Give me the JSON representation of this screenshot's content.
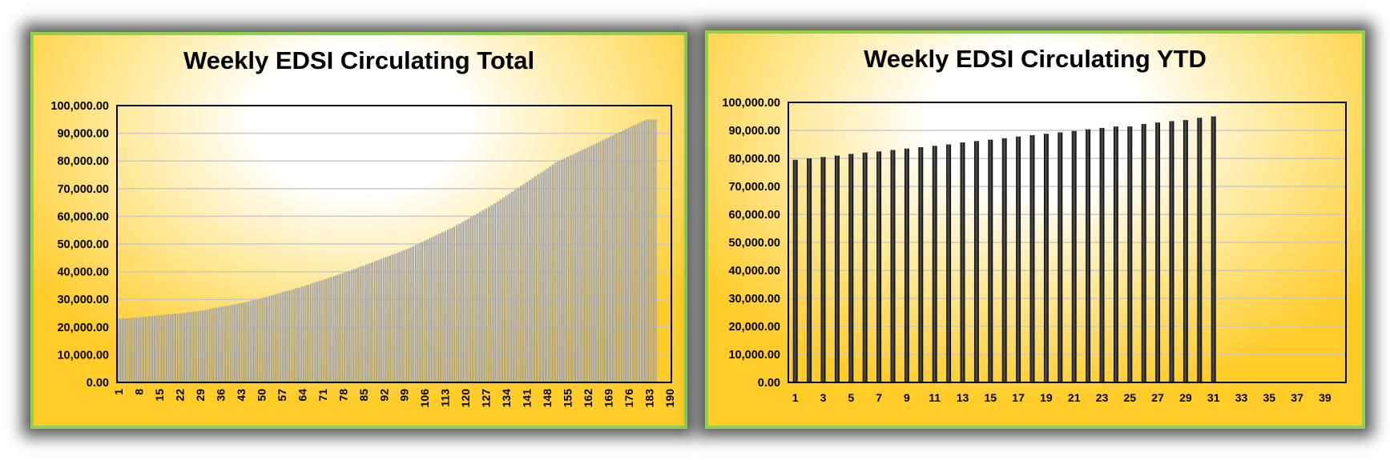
{
  "chart_data": [
    {
      "type": "bar",
      "title": "Weekly EDSI Circulating Total",
      "xlabel": "",
      "ylabel": "",
      "ylim": [
        0,
        100000
      ],
      "y_ticks": [
        "0.00",
        "10,000.00",
        "20,000.00",
        "30,000.00",
        "40,000.00",
        "50,000.00",
        "60,000.00",
        "70,000.00",
        "80,000.00",
        "90,000.00",
        "100,000.00"
      ],
      "x_ticks": [
        "1",
        "8",
        "15",
        "22",
        "29",
        "36",
        "43",
        "50",
        "57",
        "64",
        "71",
        "78",
        "85",
        "92",
        "99",
        "106",
        "113",
        "120",
        "127",
        "134",
        "141",
        "148",
        "155",
        "162",
        "169",
        "176",
        "183",
        "190"
      ],
      "category_count": 190,
      "bar_count": 185,
      "values": [
        23000,
        23050,
        23100,
        23180,
        23250,
        23350,
        23450,
        23550,
        23650,
        23750,
        23850,
        23950,
        24050,
        24150,
        24250,
        24350,
        24450,
        24550,
        24650,
        24750,
        24850,
        24950,
        25050,
        25150,
        25300,
        25450,
        25600,
        25750,
        25900,
        26050,
        26250,
        26450,
        26650,
        26850,
        27050,
        27250,
        27450,
        27650,
        27850,
        28050,
        28250,
        28450,
        28650,
        28850,
        29100,
        29350,
        29600,
        29850,
        30100,
        30400,
        30700,
        31000,
        31300,
        31600,
        31900,
        32200,
        32500,
        32800,
        33100,
        33400,
        33700,
        34000,
        34300,
        34600,
        34950,
        35300,
        35650,
        36000,
        36350,
        36700,
        37050,
        37400,
        37750,
        38100,
        38450,
        38800,
        39150,
        39500,
        39850,
        40200,
        40600,
        41000,
        41400,
        41800,
        42200,
        42600,
        43000,
        43400,
        43800,
        44200,
        44600,
        45000,
        45400,
        45800,
        46200,
        46600,
        47000,
        47400,
        47800,
        48200,
        48700,
        49200,
        49700,
        50200,
        50700,
        51200,
        51700,
        52200,
        52700,
        53200,
        53700,
        54200,
        54700,
        55200,
        55700,
        56200,
        56800,
        57400,
        58000,
        58600,
        59200,
        59800,
        60400,
        61000,
        61600,
        62200,
        62800,
        63400,
        64000,
        64700,
        65400,
        66100,
        66800,
        67500,
        68200,
        68900,
        69600,
        70300,
        71000,
        71700,
        72400,
        73100,
        73800,
        74500,
        75200,
        75900,
        76600,
        77300,
        78000,
        78800,
        79500,
        80000,
        80500,
        81000,
        81500,
        82000,
        82500,
        83000,
        83500,
        84000,
        84500,
        85000,
        85500,
        86000,
        86500,
        87000,
        87500,
        88000,
        88500,
        89000,
        89500,
        90000,
        90500,
        91000,
        91500,
        92000,
        92500,
        93000,
        93500,
        94000,
        94500,
        95000,
        95000,
        95000,
        95000
      ]
    },
    {
      "type": "bar",
      "title": "Weekly EDSI Circulating YTD",
      "xlabel": "",
      "ylabel": "",
      "ylim": [
        0,
        100000
      ],
      "y_ticks": [
        "0.00",
        "10,000.00",
        "20,000.00",
        "30,000.00",
        "40,000.00",
        "50,000.00",
        "60,000.00",
        "70,000.00",
        "80,000.00",
        "90,000.00",
        "100,000.00"
      ],
      "x_ticks": [
        "1",
        "3",
        "5",
        "7",
        "9",
        "11",
        "13",
        "15",
        "17",
        "19",
        "21",
        "23",
        "25",
        "27",
        "29",
        "31",
        "33",
        "35",
        "37",
        "39"
      ],
      "category_count": 40,
      "values": [
        79500,
        80000,
        80500,
        81000,
        81600,
        82100,
        82500,
        83000,
        83500,
        84000,
        84500,
        85000,
        85700,
        86200,
        86700,
        87200,
        87800,
        88300,
        88800,
        89300,
        89800,
        90400,
        90900,
        91400,
        91400,
        92300,
        92800,
        93300,
        93700,
        94500,
        95000
      ]
    }
  ]
}
